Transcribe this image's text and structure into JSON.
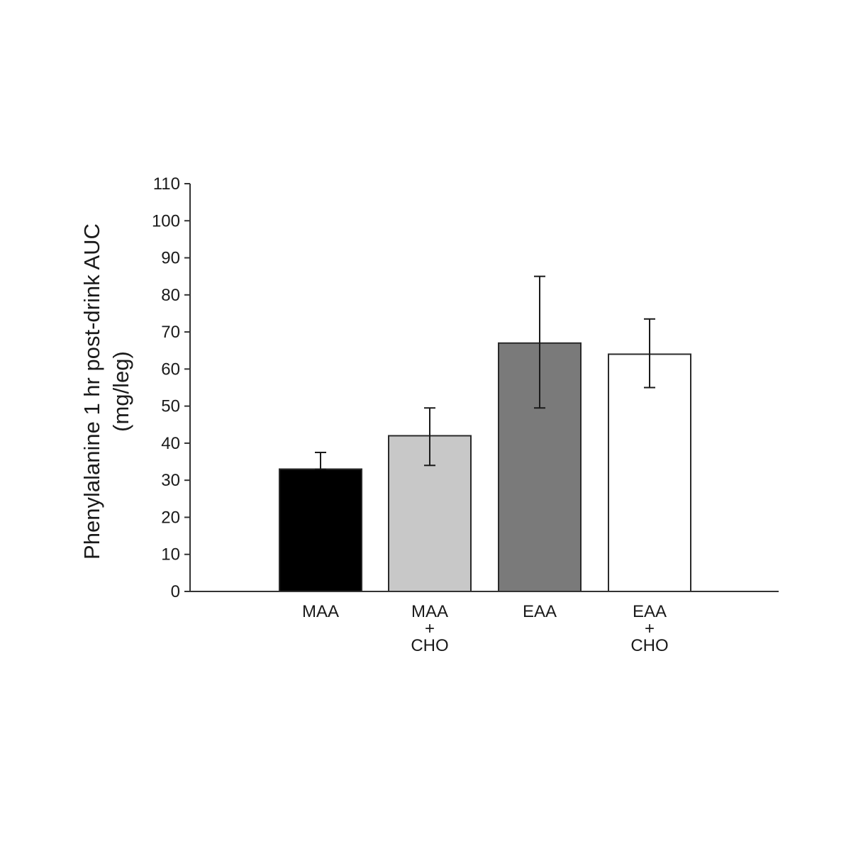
{
  "chart_data": {
    "type": "bar",
    "title": "",
    "xlabel": "",
    "ylabel_lines": [
      "Phenylalanine 1 hr post-drink AUC",
      "(mg/leg)"
    ],
    "ylim": [
      0,
      110
    ],
    "yticks": [
      0,
      10,
      20,
      30,
      40,
      50,
      60,
      70,
      80,
      90,
      100,
      110
    ],
    "categories": [
      {
        "label_lines": [
          "MAA"
        ],
        "value": 33,
        "error_upper": 37.5,
        "error_lower": 33,
        "color": "#000000"
      },
      {
        "label_lines": [
          "MAA",
          "+",
          "CHO"
        ],
        "value": 42,
        "error_upper": 49.5,
        "error_lower": 34,
        "color": "#c8c8c8"
      },
      {
        "label_lines": [
          "EAA"
        ],
        "value": 67,
        "error_upper": 85,
        "error_lower": 49.5,
        "color": "#7a7a7a"
      },
      {
        "label_lines": [
          "EAA",
          "+",
          "CHO"
        ],
        "value": 64,
        "error_upper": 73.5,
        "error_lower": 55,
        "color": "#ffffff"
      }
    ],
    "grid": false,
    "legend": "none"
  }
}
